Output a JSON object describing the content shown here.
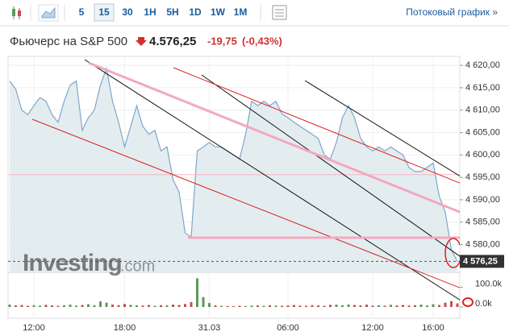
{
  "toolbar": {
    "buttons": [
      "5",
      "15",
      "30",
      "1H",
      "5H",
      "1D",
      "1W",
      "1M"
    ],
    "streaming_link": "Потоковый график »"
  },
  "header": {
    "title": "Фьючерс на S&P 500",
    "price": "4.576,25",
    "change": "-19,75",
    "change_percent": "(-0,43%)"
  },
  "chart_data": {
    "type": "area",
    "color": "#7ea6c9",
    "fill": "#e3edf0",
    "watermark": [
      "Investing",
      ".com"
    ],
    "categories": [
      null,
      null,
      null,
      null,
      "12:00",
      null,
      null,
      null,
      null,
      null,
      null,
      null,
      null,
      null,
      null,
      null,
      null,
      null,
      null,
      "18:00",
      null,
      null,
      null,
      null,
      null,
      null,
      null,
      null,
      null,
      null,
      null,
      null,
      null,
      "31.03",
      null,
      null,
      null,
      null,
      null,
      null,
      null,
      null,
      null,
      null,
      null,
      null,
      "06:00",
      null,
      null,
      null,
      null,
      null,
      null,
      null,
      null,
      null,
      null,
      null,
      null,
      null,
      "12:00",
      null,
      null,
      null,
      null,
      null,
      null,
      null,
      null,
      null,
      "16:00",
      null,
      null,
      null,
      null
    ],
    "values": [
      4616.5,
      4614.7,
      4610,
      4609,
      4611,
      4612.8,
      4612,
      4609,
      4607.3,
      4612,
      4615.6,
      4616.5,
      4605.5,
      4608.3,
      4610,
      4615.6,
      4619.3,
      4612,
      4607.3,
      4601.8,
      4606.4,
      4611,
      4606.4,
      4604.6,
      4605.5,
      4600.9,
      4601.8,
      4594.5,
      4591.7,
      4582.6,
      4581.7,
      4600.9,
      4601.8,
      4602.8,
      4601.8,
      4601.8,
      4600.9,
      4600,
      4599.1,
      4604.6,
      4612,
      4611,
      4612,
      4611,
      4612,
      4609.2,
      4608.3,
      4607.3,
      4606.4,
      4605.5,
      4604.6,
      4603.7,
      4600,
      4599.1,
      4602.8,
      4608.3,
      4611,
      4608.3,
      4603.7,
      4601.8,
      4600.9,
      4601.8,
      4600.9,
      4601.8,
      4600.9,
      4600,
      4597.2,
      4596.3,
      4596.3,
      4597.2,
      4598.2,
      4590.8,
      4587.2,
      4578.9,
      4576.2
    ],
    "last_price": {
      "value": 4576.25,
      "label": "4 576,25"
    },
    "ylim": [
      4573.8,
      4622
    ],
    "yticks": [
      {
        "value": 4580,
        "label": "4 580,00"
      },
      {
        "value": 4585,
        "label": "4 585,00"
      },
      {
        "value": 4590,
        "label": "4 590,00"
      },
      {
        "value": 4595,
        "label": "4 595,00"
      },
      {
        "value": 4600,
        "label": "4 600,00"
      },
      {
        "value": 4605,
        "label": "4 605,00"
      },
      {
        "value": 4610,
        "label": "4 610,00"
      },
      {
        "value": 4615,
        "label": "4 615,00"
      },
      {
        "value": 4620,
        "label": "4 620,00"
      }
    ],
    "volume": {
      "up_color": "#5b9a57",
      "down_color": "#c0504d",
      "values": [
        12000,
        8000,
        10000,
        6000,
        9000,
        7000,
        11000,
        8000,
        6000,
        9000,
        12000,
        7000,
        10000,
        14000,
        9000,
        28000,
        22000,
        12000,
        9000,
        15000,
        11000,
        8000,
        7000,
        10000,
        6000,
        9000,
        8000,
        12000,
        10000,
        15000,
        25000,
        145000,
        50000,
        20000,
        8000,
        6000,
        5000,
        4000,
        6000,
        5000,
        7000,
        8000,
        6000,
        9000,
        7000,
        6000,
        8000,
        10000,
        7000,
        6000,
        9000,
        8000,
        6000,
        11000,
        12000,
        9000,
        13000,
        10000,
        8000,
        12000,
        7000,
        9000,
        6000,
        11000,
        8000,
        10000,
        7000,
        9000,
        12000,
        8000,
        14000,
        10000,
        22000,
        30000,
        18000
      ],
      "ylim": [
        0,
        167000
      ],
      "yticks": [
        {
          "value": 100000,
          "label": "100.0k"
        },
        {
          "value": 0,
          "label": "0.0k"
        }
      ]
    }
  }
}
